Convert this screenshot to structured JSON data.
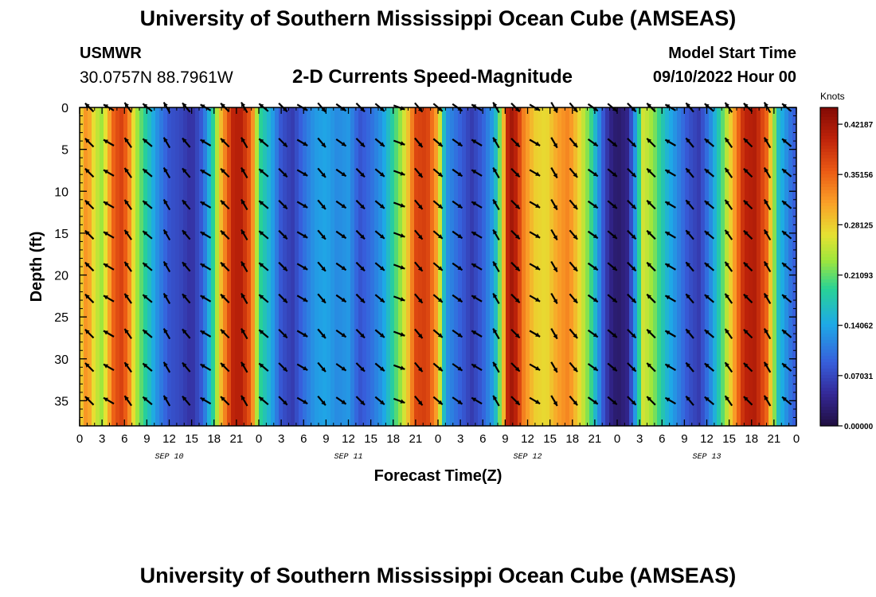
{
  "header": {
    "title": "University of Southern Mississippi Ocean Cube (AMSEAS)",
    "station_name": "USMWR",
    "station_coords": "30.0757N  88.7961W",
    "subtitle": "2-D Currents Speed-Magnitude",
    "model_start_label": "Model Start Time",
    "model_start_value": "09/10/2022 Hour 00"
  },
  "footer": {
    "repeated_title": "University of Southern Mississippi Ocean Cube (AMSEAS)"
  },
  "chart_data": {
    "type": "heatmap",
    "title": "2-D Currents Speed-Magnitude",
    "xlabel": "Forecast Time(Z)",
    "ylabel": "Depth (ft)",
    "colorbar_label": "Knots",
    "colorbar_ticks": [
      "0.42187",
      "0.35156",
      "0.28125",
      "0.21093",
      "0.14062",
      "0.07031",
      "0.00000"
    ],
    "colorbar_range": [
      0.0,
      0.4453
    ],
    "x_range_hours": [
      0,
      96
    ],
    "x_tick_labels": [
      "0",
      "3",
      "6",
      "9",
      "12",
      "15",
      "18",
      "21",
      "0",
      "3",
      "6",
      "9",
      "12",
      "15",
      "18",
      "21",
      "0",
      "3",
      "6",
      "9",
      "12",
      "15",
      "18",
      "21",
      "0",
      "3",
      "6",
      "9",
      "12",
      "15",
      "18",
      "21",
      "0"
    ],
    "date_labels": [
      {
        "hour": 12,
        "label": "SEP 10"
      },
      {
        "hour": 36,
        "label": "SEP 11"
      },
      {
        "hour": 60,
        "label": "SEP 12"
      },
      {
        "hour": 84,
        "label": "SEP 13"
      }
    ],
    "y_range_ft": [
      0,
      38
    ],
    "y_ticks": [
      0,
      5,
      10,
      15,
      20,
      25,
      30,
      35
    ],
    "speed_profile": {
      "hours": [
        0,
        1,
        2,
        3,
        4.5,
        5.5,
        6.5,
        7.5,
        9,
        10.5,
        12,
        13.5,
        15,
        16.5,
        18,
        19,
        20.5,
        21.5,
        23,
        24,
        25.5,
        27,
        28.5,
        30,
        31.5,
        33,
        34.5,
        36,
        37.5,
        39,
        40.5,
        42,
        43,
        44,
        45,
        46.5,
        48,
        49,
        51,
        52.5,
        54,
        55.5,
        56.5,
        57.5,
        58.5,
        59.5,
        61,
        62.5,
        64,
        65.5,
        67,
        68.5,
        70,
        71,
        72,
        73.5,
        74.5,
        75.5,
        77,
        78.5,
        80,
        81.5,
        83,
        84.5,
        86,
        87.5,
        89,
        90.5,
        92,
        93.5,
        95,
        96
      ],
      "knots": [
        0.27,
        0.33,
        0.26,
        0.23,
        0.35,
        0.38,
        0.34,
        0.24,
        0.18,
        0.12,
        0.08,
        0.07,
        0.05,
        0.09,
        0.2,
        0.3,
        0.4,
        0.41,
        0.35,
        0.2,
        0.15,
        0.08,
        0.06,
        0.1,
        0.13,
        0.14,
        0.12,
        0.13,
        0.08,
        0.1,
        0.13,
        0.19,
        0.23,
        0.29,
        0.37,
        0.38,
        0.3,
        0.13,
        0.09,
        0.06,
        0.09,
        0.14,
        0.24,
        0.43,
        0.4,
        0.33,
        0.28,
        0.27,
        0.31,
        0.33,
        0.27,
        0.2,
        0.09,
        0.04,
        0.02,
        0.04,
        0.14,
        0.26,
        0.22,
        0.16,
        0.12,
        0.08,
        0.06,
        0.12,
        0.2,
        0.3,
        0.4,
        0.41,
        0.35,
        0.17,
        0.11,
        0.08
      ]
    },
    "direction_columns_deg": [
      315,
      300,
      325,
      310,
      330,
      320,
      300,
      315,
      330,
      310,
      135,
      120,
      140,
      125,
      135,
      130,
      110,
      140,
      130,
      125,
      300,
      330,
      135,
      120,
      150,
      140,
      125,
      130,
      135,
      315,
      300,
      320,
      310,
      325,
      315,
      330,
      310
    ]
  }
}
